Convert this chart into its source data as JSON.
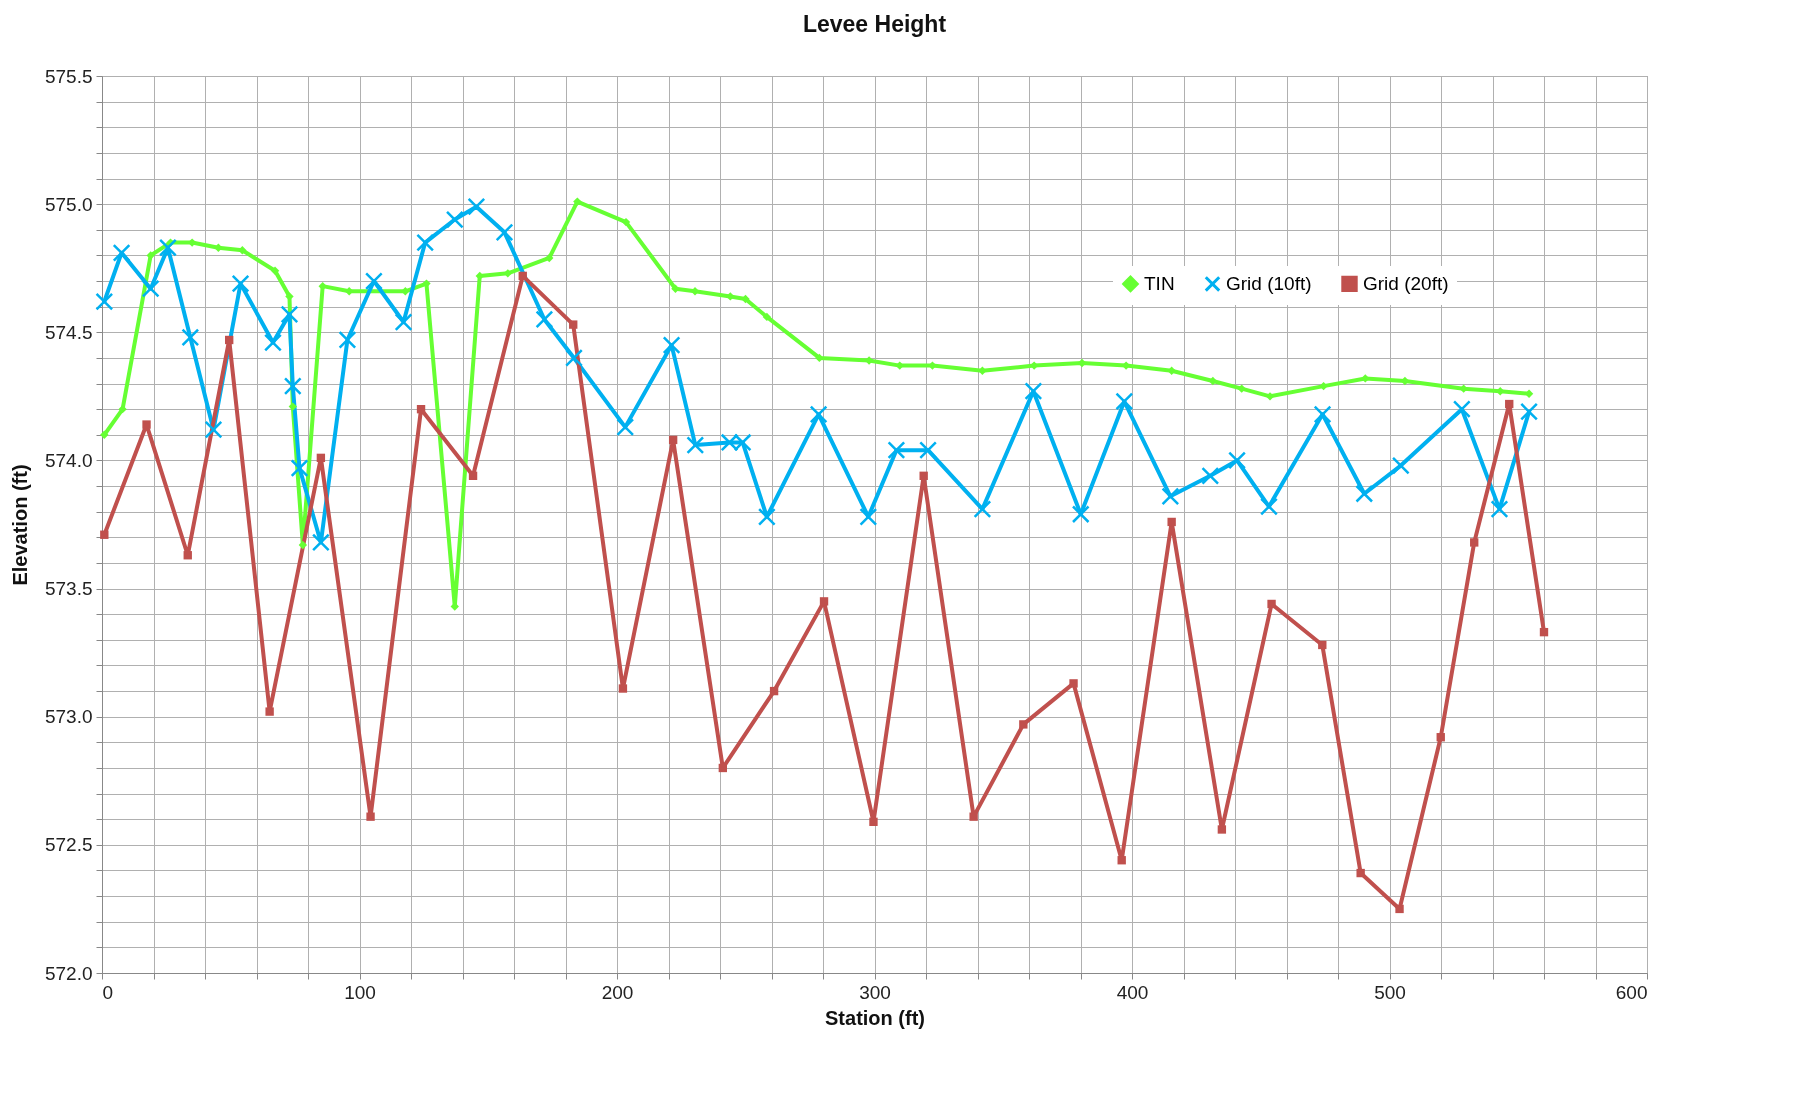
{
  "chart_data": {
    "type": "line",
    "title": "Levee Height",
    "xlabel": "Station (ft)",
    "ylabel": "Elevation (ft)",
    "xlim": [
      0,
      600
    ],
    "ylim": [
      572,
      575.5
    ],
    "xticks": [
      0,
      {
        "value": 20,
        "label": null
      },
      {
        "value": 40,
        "label": null
      },
      {
        "value": 60,
        "label": null
      },
      {
        "value": 80,
        "label": null
      },
      100,
      {
        "value": 120,
        "label": null
      },
      {
        "value": 140,
        "label": null
      },
      {
        "value": 160,
        "label": null
      },
      {
        "value": 180,
        "label": null
      },
      200,
      {
        "value": 220,
        "label": null
      },
      {
        "value": 240,
        "label": null
      },
      {
        "value": 260,
        "label": null
      },
      {
        "value": 280,
        "label": null
      },
      300,
      {
        "value": 320,
        "label": null
      },
      {
        "value": 340,
        "label": null
      },
      {
        "value": 360,
        "label": null
      },
      {
        "value": 380,
        "label": null
      },
      400,
      {
        "value": 420,
        "label": null
      },
      {
        "value": 440,
        "label": null
      },
      {
        "value": 460,
        "label": null
      },
      {
        "value": 480,
        "label": null
      },
      500,
      {
        "value": 520,
        "label": null
      },
      {
        "value": 540,
        "label": null
      },
      {
        "value": 560,
        "label": null
      },
      {
        "value": 580,
        "label": null
      },
      600
    ],
    "yticks": [
      {
        "value": 572,
        "label": "572.0"
      },
      {
        "value": 572.1,
        "label": null
      },
      {
        "value": 572.2,
        "label": null
      },
      {
        "value": 572.3,
        "label": null
      },
      {
        "value": 572.4,
        "label": null
      },
      572.5,
      {
        "value": 572.6,
        "label": null
      },
      {
        "value": 572.7,
        "label": null
      },
      {
        "value": 572.8,
        "label": null
      },
      {
        "value": 572.9,
        "label": null
      },
      {
        "value": 573,
        "label": "573.0"
      },
      {
        "value": 573.1,
        "label": null
      },
      {
        "value": 573.2,
        "label": null
      },
      {
        "value": 573.3,
        "label": null
      },
      {
        "value": 573.4,
        "label": null
      },
      573.5,
      {
        "value": 573.6,
        "label": null
      },
      {
        "value": 573.7,
        "label": null
      },
      {
        "value": 573.8,
        "label": null
      },
      {
        "value": 573.9,
        "label": null
      },
      {
        "value": 574,
        "label": "574.0"
      },
      {
        "value": 574.1,
        "label": null
      },
      {
        "value": 574.2,
        "label": null
      },
      {
        "value": 574.3,
        "label": null
      },
      {
        "value": 574.4,
        "label": null
      },
      574.5,
      {
        "value": 574.6,
        "label": null
      },
      {
        "value": 574.7,
        "label": null
      },
      {
        "value": 574.8,
        "label": null
      },
      {
        "value": 574.9,
        "label": null
      },
      {
        "value": 575,
        "label": "575.0"
      },
      {
        "value": 575.1,
        "label": null
      },
      {
        "value": 575.2,
        "label": null
      },
      {
        "value": 575.3,
        "label": null
      },
      {
        "value": 575.4,
        "label": null
      },
      575.5
    ],
    "grid": true,
    "legend": "top right",
    "line_style": "solid",
    "series": [
      {
        "name": "TIN",
        "color": "#66ff33",
        "marker": "diamond",
        "x": [
          0.9,
          8,
          18.9,
          26.6,
          35,
          45.2,
          54.5,
          67.2,
          72.8,
          74.1,
          78,
          85.7,
          96,
          117.8,
          126,
          137,
          146.7,
          157.6,
          173.7,
          184.6,
          203.5,
          222.7,
          230.3,
          244,
          249.9,
          258.2,
          278.6,
          297.9,
          309.8,
          322.5,
          341.9,
          362,
          380.6,
          397.7,
          415.4,
          431.4,
          442.6,
          453.6,
          474.4,
          490.6,
          506,
          528.8,
          543,
          554.2
        ],
        "values": [
          574.1,
          574.2,
          574.8,
          574.85,
          574.85,
          574.83,
          574.82,
          574.74,
          574.64,
          574.21,
          573.67,
          574.68,
          574.66,
          574.66,
          574.69,
          573.43,
          574.72,
          574.73,
          574.79,
          575.01,
          574.93,
          574.67,
          574.66,
          574.64,
          574.63,
          574.56,
          574.4,
          574.39,
          574.37,
          574.37,
          574.35,
          574.37,
          574.38,
          574.37,
          574.35,
          574.31,
          574.28,
          574.25,
          574.29,
          574.32,
          574.31,
          574.28,
          574.27,
          574.26
        ]
      },
      {
        "name": "Grid (10ft)",
        "color": "#00b0f0",
        "marker": "cross",
        "x": [
          0.9,
          7.6,
          18.9,
          25.6,
          34.3,
          43.3,
          53.8,
          66.4,
          72.8,
          74.1,
          76.7,
          85,
          95.3,
          105.6,
          117.1,
          125.5,
          137,
          145.4,
          156.3,
          171.8,
          183.3,
          203.2,
          221.2,
          230.4,
          243.7,
          248.8,
          258.2,
          278.3,
          297.6,
          308.5,
          320.8,
          341.9,
          361.7,
          380.1,
          397,
          414.9,
          430.4,
          440.8,
          453.2,
          474,
          490.2,
          504.4,
          528.1,
          542.7,
          554.2
        ],
        "values": [
          574.62,
          574.81,
          574.67,
          574.83,
          574.48,
          574.12,
          574.69,
          574.46,
          574.57,
          574.29,
          573.97,
          573.68,
          574.47,
          574.7,
          574.54,
          574.85,
          574.94,
          574.99,
          574.89,
          574.55,
          574.4,
          574.13,
          574.45,
          574.06,
          574.07,
          574.07,
          573.78,
          574.18,
          573.78,
          574.04,
          574.04,
          573.81,
          574.27,
          573.79,
          574.23,
          573.86,
          573.94,
          574.0,
          573.82,
          574.18,
          573.87,
          573.98,
          574.2,
          573.81,
          574.19
        ]
      },
      {
        "name": "Grid (20ft)",
        "color": "#c0504d",
        "marker": "square",
        "x": [
          0.9,
          17.3,
          33.3,
          49.4,
          65.1,
          85,
          104.3,
          123.9,
          144.1,
          163.4,
          183,
          202.3,
          221.8,
          241.1,
          261,
          280.4,
          299.6,
          319.1,
          338.5,
          357.8,
          377.3,
          396,
          415.4,
          434.9,
          454.2,
          473.9,
          488.8,
          503.9,
          519.9,
          532.9,
          546.5,
          560
        ],
        "values": [
          573.71,
          574.14,
          573.63,
          574.47,
          573.02,
          574.01,
          572.61,
          574.2,
          573.94,
          574.72,
          574.53,
          573.11,
          574.08,
          572.8,
          573.1,
          573.45,
          572.59,
          573.94,
          572.61,
          572.97,
          573.13,
          572.44,
          573.76,
          572.56,
          573.44,
          573.28,
          572.39,
          572.25,
          572.92,
          573.68,
          574.22,
          573.33
        ]
      }
    ]
  }
}
